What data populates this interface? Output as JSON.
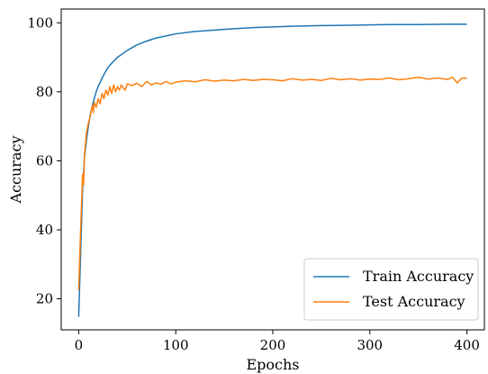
{
  "chart_data": {
    "type": "line",
    "title": "",
    "xlabel": "Epochs",
    "ylabel": "Accuracy",
    "xlim": [
      -18,
      418
    ],
    "ylim": [
      11,
      104
    ],
    "xticks": [
      0,
      100,
      200,
      300,
      400
    ],
    "yticks": [
      20,
      40,
      60,
      80,
      100
    ],
    "grid": false,
    "legend_position": "lower-right",
    "series": [
      {
        "name": "Train Accuracy",
        "color": "#1f77b4",
        "x": [
          0,
          2,
          4,
          6,
          8,
          10,
          12,
          15,
          18,
          20,
          25,
          30,
          35,
          40,
          50,
          60,
          70,
          80,
          90,
          100,
          120,
          140,
          160,
          180,
          200,
          220,
          250,
          280,
          300,
          320,
          350,
          380,
          400
        ],
        "y": [
          14.8,
          33,
          52,
          61,
          66,
          70,
          73.5,
          77,
          80,
          81.5,
          84.5,
          87,
          88.6,
          90,
          92,
          93.6,
          94.7,
          95.6,
          96.2,
          96.8,
          97.5,
          97.9,
          98.3,
          98.6,
          98.8,
          99.0,
          99.2,
          99.3,
          99.4,
          99.5,
          99.5,
          99.6,
          99.6
        ]
      },
      {
        "name": "Test Accuracy",
        "color": "#ff7f0e",
        "x": [
          0,
          2,
          4,
          5,
          6,
          8,
          10,
          12,
          14,
          15,
          16,
          18,
          20,
          22,
          24,
          26,
          28,
          30,
          32,
          34,
          36,
          38,
          40,
          42,
          44,
          46,
          48,
          50,
          55,
          60,
          65,
          70,
          75,
          80,
          85,
          90,
          95,
          100,
          110,
          120,
          130,
          140,
          150,
          160,
          170,
          180,
          190,
          200,
          210,
          220,
          230,
          240,
          250,
          260,
          270,
          280,
          290,
          300,
          310,
          320,
          330,
          340,
          350,
          360,
          370,
          380,
          385,
          390,
          395,
          400
        ],
        "y": [
          22.5,
          40,
          56,
          53,
          62,
          68,
          71,
          73,
          76,
          74,
          77,
          75.5,
          78,
          76.5,
          79.5,
          78,
          80.5,
          79,
          81.5,
          79.5,
          82,
          80,
          81.5,
          80.5,
          82,
          81,
          80.5,
          82.3,
          81.8,
          82.5,
          81.5,
          83,
          82,
          82.6,
          82.2,
          83,
          82.3,
          82.8,
          83.2,
          82.9,
          83.5,
          83.1,
          83.4,
          83.2,
          83.6,
          83.3,
          83.6,
          83.5,
          83.2,
          83.8,
          83.4,
          83.6,
          83.3,
          83.9,
          83.5,
          83.8,
          83.4,
          83.7,
          83.6,
          84,
          83.5,
          83.8,
          84.2,
          83.7,
          84,
          83.6,
          84.2,
          82.6,
          84,
          83.9
        ]
      }
    ]
  }
}
